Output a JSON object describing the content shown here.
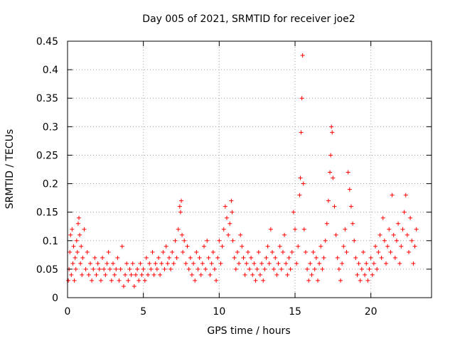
{
  "chart_data": {
    "type": "scatter",
    "title": "Day 005 of 2021, SRMTID for receiver joe2",
    "xlabel": "GPS time / hours",
    "ylabel": "SRMTID / TECUs",
    "xlim": [
      0,
      24
    ],
    "ylim": [
      0,
      0.45
    ],
    "xticks": [
      0,
      5,
      10,
      15,
      20
    ],
    "xtick_labels": [
      "0",
      "5",
      "10",
      "15",
      "20"
    ],
    "yticks": [
      0,
      0.05,
      0.1,
      0.15,
      0.2,
      0.25,
      0.3,
      0.35,
      0.4,
      0.45
    ],
    "ytick_labels": [
      "0",
      "0.05",
      "0.1",
      "0.15",
      "0.2",
      "0.25",
      "0.3",
      "0.35",
      "0.4",
      "0.45"
    ],
    "grid": true,
    "marker": "+",
    "series": [
      {
        "name": "SRMTID",
        "color": "#ff0000",
        "points": [
          [
            0.05,
            0.03
          ],
          [
            0.1,
            0.05
          ],
          [
            0.15,
            0.08
          ],
          [
            0.2,
            0.11
          ],
          [
            0.25,
            0.04
          ],
          [
            0.3,
            0.12
          ],
          [
            0.35,
            0.06
          ],
          [
            0.4,
            0.09
          ],
          [
            0.45,
            0.03
          ],
          [
            0.5,
            0.07
          ],
          [
            0.55,
            0.05
          ],
          [
            0.6,
            0.1
          ],
          [
            0.65,
            0.08
          ],
          [
            0.7,
            0.13
          ],
          [
            0.75,
            0.14
          ],
          [
            0.8,
            0.11
          ],
          [
            0.85,
            0.06
          ],
          [
            0.9,
            0.09
          ],
          [
            0.95,
            0.04
          ],
          [
            1.0,
            0.07
          ],
          [
            1.1,
            0.12
          ],
          [
            1.2,
            0.05
          ],
          [
            1.3,
            0.08
          ],
          [
            1.4,
            0.04
          ],
          [
            1.5,
            0.06
          ],
          [
            1.6,
            0.03
          ],
          [
            1.7,
            0.05
          ],
          [
            1.8,
            0.07
          ],
          [
            1.9,
            0.04
          ],
          [
            2.0,
            0.06
          ],
          [
            2.1,
            0.05
          ],
          [
            2.2,
            0.03
          ],
          [
            2.3,
            0.07
          ],
          [
            2.4,
            0.05
          ],
          [
            2.5,
            0.04
          ],
          [
            2.6,
            0.06
          ],
          [
            2.7,
            0.08
          ],
          [
            2.8,
            0.05
          ],
          [
            2.9,
            0.03
          ],
          [
            3.0,
            0.06
          ],
          [
            3.1,
            0.04
          ],
          [
            3.2,
            0.05
          ],
          [
            3.3,
            0.07
          ],
          [
            3.4,
            0.03
          ],
          [
            3.5,
            0.05
          ],
          [
            3.6,
            0.09
          ],
          [
            3.7,
            0.02
          ],
          [
            3.8,
            0.04
          ],
          [
            3.9,
            0.06
          ],
          [
            4.0,
            0.03
          ],
          [
            4.1,
            0.05
          ],
          [
            4.2,
            0.04
          ],
          [
            4.3,
            0.06
          ],
          [
            4.4,
            0.02
          ],
          [
            4.5,
            0.04
          ],
          [
            4.6,
            0.05
          ],
          [
            4.7,
            0.03
          ],
          [
            4.8,
            0.06
          ],
          [
            4.9,
            0.04
          ],
          [
            5.0,
            0.05
          ],
          [
            5.1,
            0.03
          ],
          [
            5.2,
            0.07
          ],
          [
            5.3,
            0.04
          ],
          [
            5.4,
            0.06
          ],
          [
            5.5,
            0.05
          ],
          [
            5.6,
            0.08
          ],
          [
            5.7,
            0.04
          ],
          [
            5.8,
            0.06
          ],
          [
            5.9,
            0.05
          ],
          [
            6.0,
            0.07
          ],
          [
            6.1,
            0.04
          ],
          [
            6.2,
            0.06
          ],
          [
            6.3,
            0.08
          ],
          [
            6.4,
            0.05
          ],
          [
            6.5,
            0.09
          ],
          [
            6.6,
            0.06
          ],
          [
            6.7,
            0.07
          ],
          [
            6.8,
            0.05
          ],
          [
            6.9,
            0.08
          ],
          [
            7.0,
            0.06
          ],
          [
            7.1,
            0.1
          ],
          [
            7.2,
            0.07
          ],
          [
            7.3,
            0.12
          ],
          [
            7.4,
            0.16
          ],
          [
            7.45,
            0.15
          ],
          [
            7.5,
            0.17
          ],
          [
            7.55,
            0.11
          ],
          [
            7.6,
            0.08
          ],
          [
            7.7,
            0.1
          ],
          [
            7.8,
            0.06
          ],
          [
            7.9,
            0.09
          ],
          [
            8.0,
            0.05
          ],
          [
            8.1,
            0.07
          ],
          [
            8.2,
            0.04
          ],
          [
            8.3,
            0.06
          ],
          [
            8.4,
            0.03
          ],
          [
            8.5,
            0.08
          ],
          [
            8.6,
            0.05
          ],
          [
            8.7,
            0.07
          ],
          [
            8.8,
            0.04
          ],
          [
            8.9,
            0.06
          ],
          [
            9.0,
            0.09
          ],
          [
            9.1,
            0.05
          ],
          [
            9.2,
            0.1
          ],
          [
            9.3,
            0.07
          ],
          [
            9.4,
            0.04
          ],
          [
            9.5,
            0.06
          ],
          [
            9.6,
            0.08
          ],
          [
            9.7,
            0.05
          ],
          [
            9.8,
            0.03
          ],
          [
            9.9,
            0.07
          ],
          [
            10.0,
            0.1
          ],
          [
            10.1,
            0.06
          ],
          [
            10.2,
            0.09
          ],
          [
            10.3,
            0.12
          ],
          [
            10.4,
            0.16
          ],
          [
            10.5,
            0.14
          ],
          [
            10.6,
            0.11
          ],
          [
            10.7,
            0.13
          ],
          [
            10.8,
            0.17
          ],
          [
            10.85,
            0.15
          ],
          [
            10.9,
            0.1
          ],
          [
            11.0,
            0.07
          ],
          [
            11.1,
            0.05
          ],
          [
            11.2,
            0.08
          ],
          [
            11.3,
            0.06
          ],
          [
            11.4,
            0.11
          ],
          [
            11.5,
            0.09
          ],
          [
            11.6,
            0.07
          ],
          [
            11.7,
            0.04
          ],
          [
            11.8,
            0.06
          ],
          [
            11.9,
            0.08
          ],
          [
            12.0,
            0.05
          ],
          [
            12.1,
            0.07
          ],
          [
            12.2,
            0.04
          ],
          [
            12.3,
            0.06
          ],
          [
            12.4,
            0.03
          ],
          [
            12.5,
            0.05
          ],
          [
            12.6,
            0.08
          ],
          [
            12.7,
            0.04
          ],
          [
            12.8,
            0.06
          ],
          [
            12.9,
            0.03
          ],
          [
            13.0,
            0.05
          ],
          [
            13.1,
            0.07
          ],
          [
            13.2,
            0.09
          ],
          [
            13.3,
            0.06
          ],
          [
            13.4,
            0.12
          ],
          [
            13.5,
            0.08
          ],
          [
            13.6,
            0.05
          ],
          [
            13.7,
            0.07
          ],
          [
            13.8,
            0.04
          ],
          [
            13.9,
            0.06
          ],
          [
            14.0,
            0.09
          ],
          [
            14.1,
            0.05
          ],
          [
            14.2,
            0.08
          ],
          [
            14.3,
            0.11
          ],
          [
            14.4,
            0.06
          ],
          [
            14.5,
            0.04
          ],
          [
            14.6,
            0.07
          ],
          [
            14.7,
            0.05
          ],
          [
            14.8,
            0.08
          ],
          [
            14.9,
            0.15
          ],
          [
            15.0,
            0.12
          ],
          [
            15.1,
            0.06
          ],
          [
            15.2,
            0.09
          ],
          [
            15.3,
            0.18
          ],
          [
            15.35,
            0.21
          ],
          [
            15.4,
            0.29
          ],
          [
            15.45,
            0.35
          ],
          [
            15.5,
            0.425
          ],
          [
            15.55,
            0.2
          ],
          [
            15.6,
            0.12
          ],
          [
            15.7,
            0.08
          ],
          [
            15.8,
            0.05
          ],
          [
            15.9,
            0.03
          ],
          [
            16.0,
            0.06
          ],
          [
            16.1,
            0.04
          ],
          [
            16.2,
            0.08
          ],
          [
            16.3,
            0.05
          ],
          [
            16.4,
            0.07
          ],
          [
            16.5,
            0.03
          ],
          [
            16.6,
            0.06
          ],
          [
            16.7,
            0.09
          ],
          [
            16.8,
            0.05
          ],
          [
            16.9,
            0.07
          ],
          [
            17.0,
            0.1
          ],
          [
            17.1,
            0.13
          ],
          [
            17.2,
            0.17
          ],
          [
            17.3,
            0.22
          ],
          [
            17.35,
            0.25
          ],
          [
            17.4,
            0.3
          ],
          [
            17.45,
            0.29
          ],
          [
            17.5,
            0.21
          ],
          [
            17.6,
            0.16
          ],
          [
            17.7,
            0.11
          ],
          [
            17.8,
            0.07
          ],
          [
            17.9,
            0.05
          ],
          [
            18.0,
            0.03
          ],
          [
            18.1,
            0.06
          ],
          [
            18.2,
            0.09
          ],
          [
            18.3,
            0.12
          ],
          [
            18.4,
            0.08
          ],
          [
            18.5,
            0.22
          ],
          [
            18.6,
            0.19
          ],
          [
            18.7,
            0.16
          ],
          [
            18.8,
            0.13
          ],
          [
            18.9,
            0.1
          ],
          [
            19.0,
            0.07
          ],
          [
            19.1,
            0.04
          ],
          [
            19.2,
            0.06
          ],
          [
            19.3,
            0.03
          ],
          [
            19.4,
            0.05
          ],
          [
            19.5,
            0.08
          ],
          [
            19.6,
            0.04
          ],
          [
            19.7,
            0.06
          ],
          [
            19.8,
            0.03
          ],
          [
            19.9,
            0.05
          ],
          [
            20.0,
            0.07
          ],
          [
            20.1,
            0.04
          ],
          [
            20.2,
            0.06
          ],
          [
            20.3,
            0.09
          ],
          [
            20.4,
            0.05
          ],
          [
            20.5,
            0.08
          ],
          [
            20.6,
            0.11
          ],
          [
            20.7,
            0.07
          ],
          [
            20.8,
            0.14
          ],
          [
            20.9,
            0.1
          ],
          [
            21.0,
            0.06
          ],
          [
            21.1,
            0.09
          ],
          [
            21.2,
            0.12
          ],
          [
            21.3,
            0.08
          ],
          [
            21.4,
            0.18
          ],
          [
            21.5,
            0.11
          ],
          [
            21.6,
            0.07
          ],
          [
            21.7,
            0.1
          ],
          [
            21.8,
            0.13
          ],
          [
            21.9,
            0.06
          ],
          [
            22.0,
            0.09
          ],
          [
            22.1,
            0.12
          ],
          [
            22.2,
            0.15
          ],
          [
            22.3,
            0.18
          ],
          [
            22.4,
            0.11
          ],
          [
            22.5,
            0.08
          ],
          [
            22.6,
            0.14
          ],
          [
            22.7,
            0.1
          ],
          [
            22.8,
            0.06
          ],
          [
            22.9,
            0.09
          ],
          [
            23.0,
            0.12
          ]
        ]
      }
    ]
  }
}
